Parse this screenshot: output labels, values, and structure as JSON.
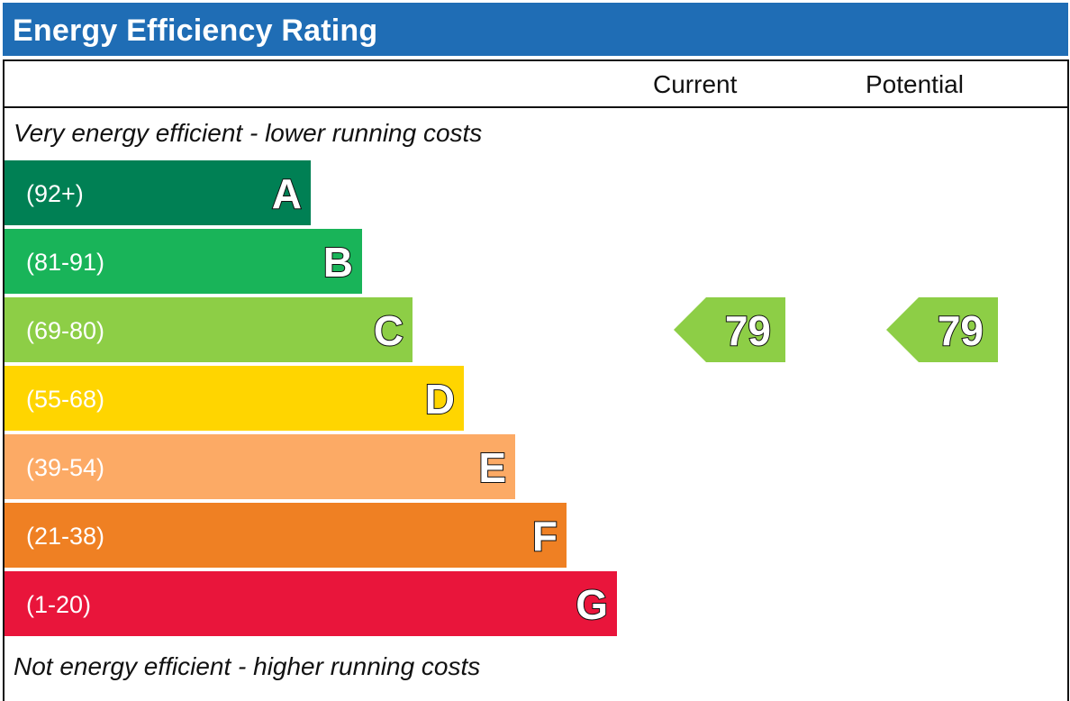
{
  "title": "Energy Efficiency Rating",
  "columns": {
    "current": "Current",
    "potential": "Potential"
  },
  "notes": {
    "top": "Very energy efficient - lower running costs",
    "bottom": "Not energy efficient - higher running costs"
  },
  "chart_data": {
    "type": "bar",
    "bands": [
      {
        "letter": "A",
        "range": "(92+)",
        "color": "#008054"
      },
      {
        "letter": "B",
        "range": "(81-91)",
        "color": "#19b459"
      },
      {
        "letter": "C",
        "range": "(69-80)",
        "color": "#8dce46"
      },
      {
        "letter": "D",
        "range": "(55-68)",
        "color": "#ffd500"
      },
      {
        "letter": "E",
        "range": "(39-54)",
        "color": "#fcaa65"
      },
      {
        "letter": "F",
        "range": "(21-38)",
        "color": "#ef8023"
      },
      {
        "letter": "G",
        "range": "(1-20)",
        "color": "#e9153b"
      }
    ],
    "current": {
      "value": 79,
      "band": "C",
      "color": "#8dce46"
    },
    "potential": {
      "value": 79,
      "band": "C",
      "color": "#8dce46"
    }
  }
}
